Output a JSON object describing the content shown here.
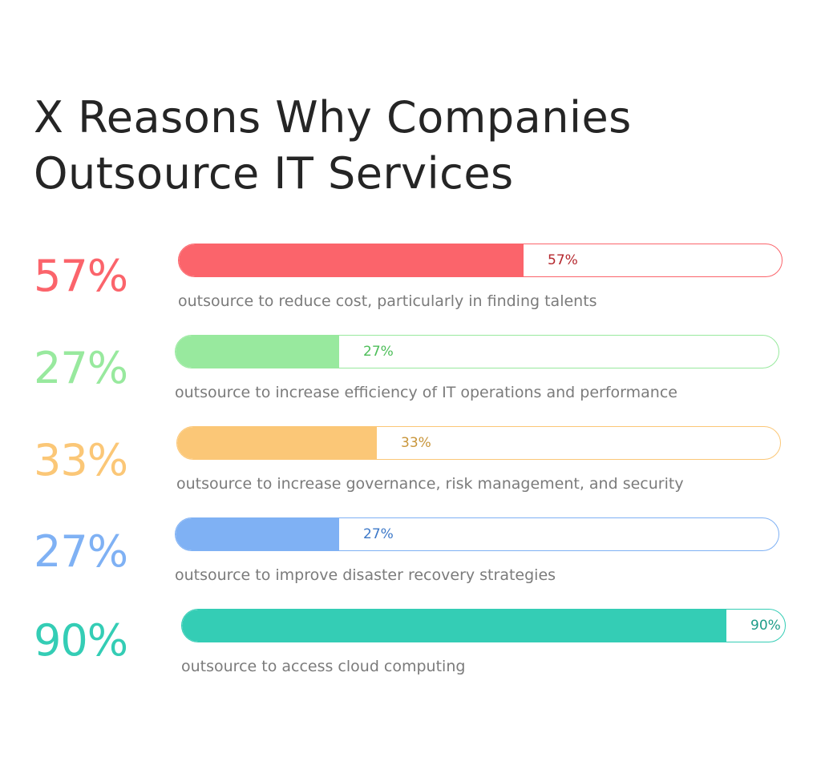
{
  "chart_data": {
    "type": "bar",
    "orientation": "horizontal",
    "title_lines": [
      "X Reasons Why Companies",
      "Outsource IT Services"
    ],
    "max_value": 100,
    "items": [
      {
        "value": 57,
        "big_label": "57%",
        "bar_label": "57%",
        "caption": "outsource to reduce cost, particularly in finding talents",
        "color": "#FB646B",
        "label_color": "#B5282E"
      },
      {
        "value": 27,
        "big_label": "27%",
        "bar_label": "27%",
        "caption": "outsource to increase efficiency of IT operations and performance",
        "color": "#98E99E",
        "label_color": "#4DBE59"
      },
      {
        "value": 33,
        "big_label": "33%",
        "bar_label": "33%",
        "caption": "outsource to increase governance, risk management, and security",
        "color": "#FBC777",
        "label_color": "#C8953A"
      },
      {
        "value": 27,
        "big_label": "27%",
        "bar_label": "27%",
        "caption": "outsource to improve disaster recovery strategies",
        "color": "#7FB1F4",
        "label_color": "#3C78C8"
      },
      {
        "value": 90,
        "big_label": "90%",
        "bar_label": "90%",
        "caption": "outsource to access cloud computing",
        "color": "#34CDB5",
        "label_color": "#1E9C89"
      }
    ]
  }
}
